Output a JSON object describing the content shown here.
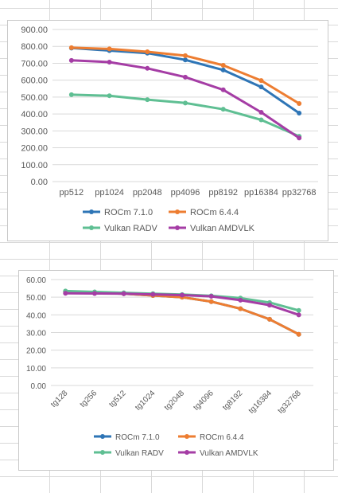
{
  "chart_data": [
    {
      "type": "line",
      "title": "",
      "xlabel": "",
      "ylabel": "",
      "categories": [
        "pp512",
        "pp1024",
        "pp2048",
        "pp4096",
        "pp8192",
        "pp16384",
        "pp32768"
      ],
      "ylim": [
        0,
        900
      ],
      "yticks": [
        "0.00",
        "100.00",
        "200.00",
        "300.00",
        "400.00",
        "500.00",
        "600.00",
        "700.00",
        "800.00",
        "900.00"
      ],
      "grid": true,
      "legend_position": "bottom",
      "series": [
        {
          "name": "ROCm 7.1.0",
          "color": "#2e75b6",
          "values": [
            790,
            775,
            760,
            720,
            660,
            560,
            405
          ]
        },
        {
          "name": "ROCm 6.4.4",
          "color": "#ed7d31",
          "values": [
            792,
            785,
            768,
            745,
            688,
            598,
            462
          ]
        },
        {
          "name": "Vulkan RADV",
          "color": "#5fbf93",
          "values": [
            514,
            508,
            485,
            465,
            428,
            365,
            268
          ]
        },
        {
          "name": "Vulkan AMDVLK",
          "color": "#a53da5",
          "values": [
            717,
            707,
            670,
            618,
            543,
            410,
            258
          ]
        }
      ]
    },
    {
      "type": "line",
      "title": "",
      "xlabel": "",
      "ylabel": "",
      "categories": [
        "tg128",
        "tg256",
        "tg512",
        "tg1024",
        "tg2048",
        "tg4096",
        "tg8192",
        "tg16384",
        "tg32768"
      ],
      "ylim": [
        0,
        60
      ],
      "yticks": [
        "0.00",
        "10.00",
        "20.00",
        "30.00",
        "40.00",
        "50.00",
        "60.00"
      ],
      "grid": true,
      "legend_position": "bottom",
      "series": [
        {
          "name": "ROCm 7.1.0",
          "color": "#2e75b6",
          "values": [
            53,
            52.5,
            52,
            51,
            50,
            47.5,
            43.5,
            37.5,
            29
          ]
        },
        {
          "name": "ROCm 6.4.4",
          "color": "#ed7d31",
          "values": [
            53,
            52.5,
            52,
            51,
            50,
            47.5,
            43.5,
            37.5,
            29
          ]
        },
        {
          "name": "Vulkan RADV",
          "color": "#5fbf93",
          "values": [
            53.5,
            53,
            52.5,
            52,
            51.5,
            50.8,
            49.5,
            47,
            42.5
          ]
        },
        {
          "name": "Vulkan AMDVLK",
          "color": "#a53da5",
          "values": [
            52.2,
            52.1,
            52,
            51.6,
            51.2,
            50.5,
            48.3,
            45.5,
            40
          ]
        }
      ]
    }
  ]
}
